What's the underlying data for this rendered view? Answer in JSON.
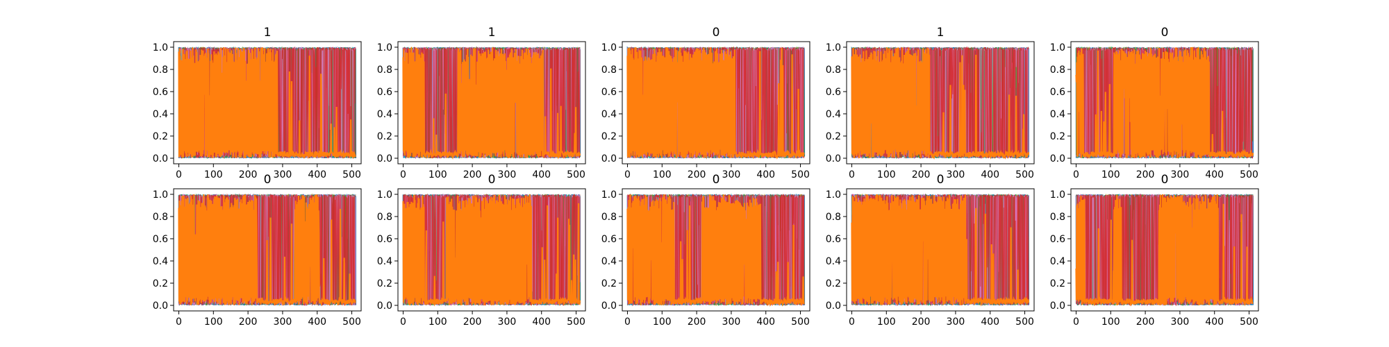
{
  "chart_data": {
    "type": "line",
    "layout": {
      "rows": 2,
      "cols": 5
    },
    "xlim": [
      -15,
      527
    ],
    "ylim": [
      -0.05,
      1.05
    ],
    "xticks": [
      0,
      100,
      200,
      300,
      400,
      500
    ],
    "yticks": [
      0.0,
      0.2,
      0.4,
      0.6,
      0.8,
      1.0
    ],
    "xtick_labels": [
      "0",
      "100",
      "200",
      "300",
      "400",
      "500"
    ],
    "ytick_labels": [
      "0.0",
      "0.2",
      "0.4",
      "0.6",
      "0.8",
      "1.0"
    ],
    "n_points": 512,
    "colors": {
      "background_series": "#1f77b4",
      "highlight_series": "#ff7f0e",
      "extra_series": [
        "#17becf",
        "#bcbd22",
        "#9467bd",
        "#2ca02c",
        "#8c564b",
        "#e377c2",
        "#d62728"
      ]
    },
    "panels": [
      {
        "title": "1",
        "orange_regions": [
          [
            0,
            285
          ]
        ]
      },
      {
        "title": "1",
        "orange_regions": [
          [
            0,
            60
          ],
          [
            160,
            405
          ]
        ]
      },
      {
        "title": "0",
        "orange_regions": [
          [
            0,
            310
          ]
        ]
      },
      {
        "title": "1",
        "orange_regions": [
          [
            0,
            225
          ]
        ]
      },
      {
        "title": "0",
        "orange_regions": [
          [
            0,
            20
          ],
          [
            110,
            385
          ]
        ]
      },
      {
        "title": "0",
        "orange_regions": [
          [
            0,
            225
          ],
          [
            335,
            405
          ]
        ]
      },
      {
        "title": "0",
        "orange_regions": [
          [
            0,
            60
          ],
          [
            125,
            370
          ]
        ]
      },
      {
        "title": "0",
        "orange_regions": [
          [
            0,
            135
          ],
          [
            215,
            385
          ]
        ]
      },
      {
        "title": "0",
        "orange_regions": [
          [
            0,
            330
          ]
        ]
      },
      {
        "title": "0",
        "orange_regions": [
          [
            0,
            25
          ],
          [
            110,
            130
          ],
          [
            240,
            410
          ]
        ]
      }
    ]
  }
}
